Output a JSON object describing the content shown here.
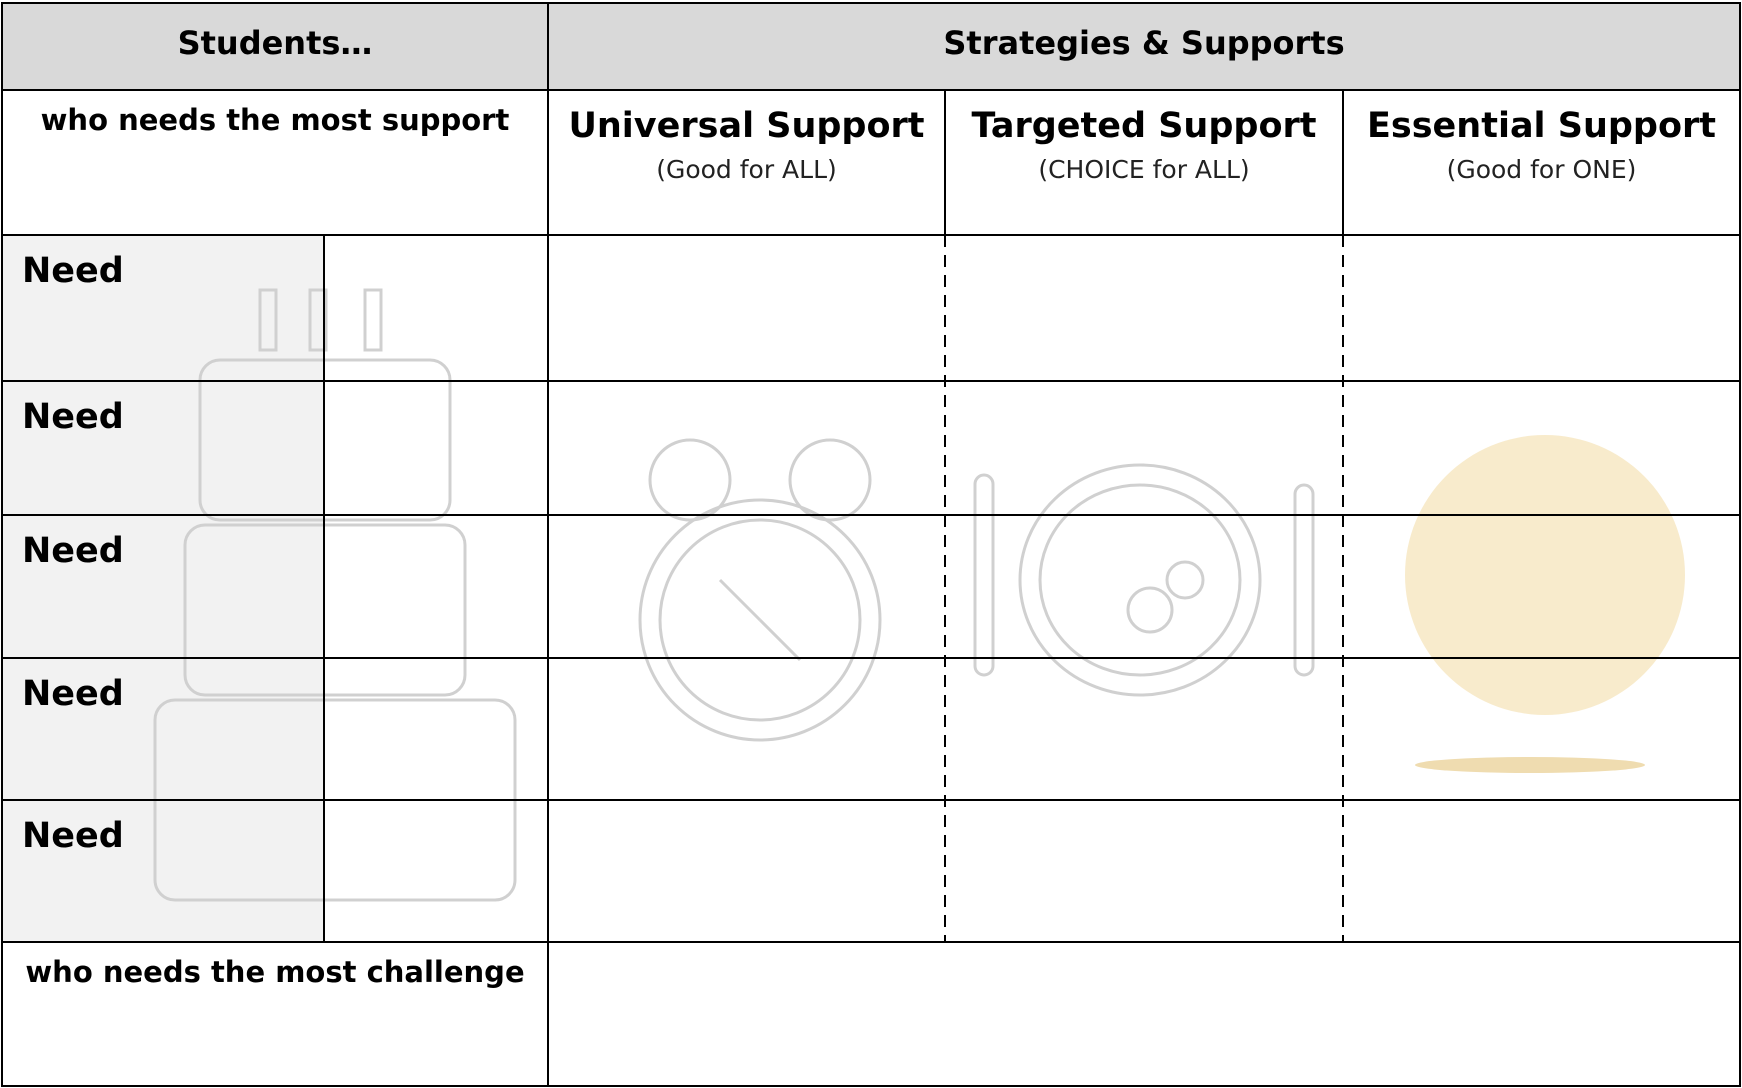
{
  "header": {
    "students": "Students…",
    "strategies": "Strategies & Supports"
  },
  "subheader": {
    "left": "who needs the most support",
    "columns": [
      {
        "title": "Universal Support",
        "subtitle": "(Good for ALL)"
      },
      {
        "title": "Targeted Support",
        "subtitle": "(CHOICE for ALL)"
      },
      {
        "title": "Essential Support",
        "subtitle": "(Good for ONE)"
      }
    ]
  },
  "rows": [
    "Need",
    "Need",
    "Need",
    "Need",
    "Need"
  ],
  "footer": {
    "left": "who needs the most challenge"
  }
}
